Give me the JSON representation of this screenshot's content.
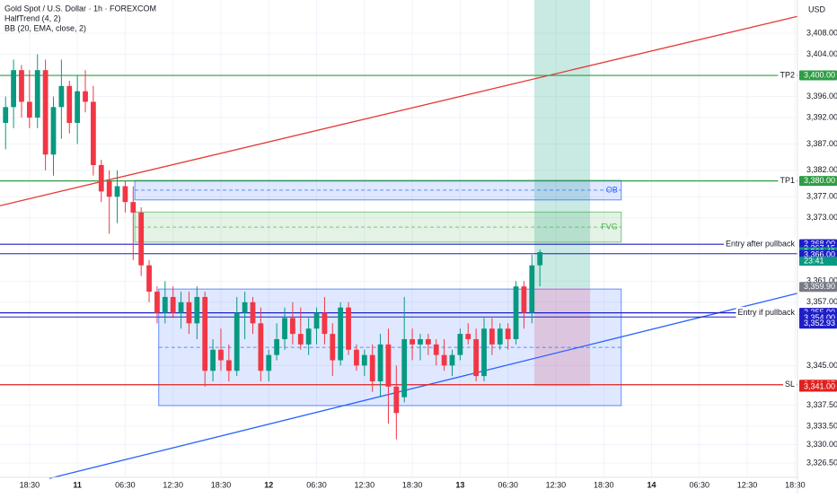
{
  "chart_data": {
    "type": "candlestick",
    "title": "Gold Spot / U.S. Dollar · 1h · FOREXCOM",
    "indicators": [
      "HalfTrend (4, 2)",
      "BB (20, EMA, close, 2)"
    ],
    "currency": "USD",
    "up_color": "#089981",
    "down_color": "#f23645",
    "x": [
      -3,
      -2,
      -1,
      0,
      1,
      2,
      3,
      4,
      5,
      6,
      7,
      8,
      9,
      10,
      11,
      12,
      13,
      14,
      15,
      16,
      17,
      18,
      19,
      20,
      21,
      22,
      23,
      24,
      25,
      26,
      27,
      28,
      29,
      30,
      31,
      32,
      33,
      34,
      35,
      36,
      37,
      38,
      39,
      40,
      41,
      42,
      43,
      44,
      45,
      46,
      47,
      48,
      49,
      50,
      51,
      52,
      53,
      54,
      55,
      56,
      57,
      58,
      59,
      60,
      61,
      62,
      63,
      64
    ],
    "open": [
      3391,
      3394,
      3401,
      3395,
      3392,
      3401,
      3385,
      3394,
      3398,
      3391,
      3397,
      3395,
      3383,
      3380,
      3377,
      3379,
      3376,
      3374,
      3364,
      3359,
      3355,
      3358,
      3355,
      3357,
      3353,
      3358,
      3344,
      3348,
      3346,
      3344,
      3355,
      3357,
      3353,
      3344,
      3347,
      3350,
      3354,
      3351,
      3349,
      3352,
      3355,
      3351,
      3346,
      3356,
      3348,
      3345,
      3347,
      3342,
      3349,
      3341,
      3339,
      3350,
      3349,
      3350,
      3349,
      3347,
      3345,
      3347,
      3351,
      3350,
      3343,
      3352,
      3349,
      3352,
      3350,
      3360,
      3355,
      3364
    ],
    "high": [
      3396,
      3403,
      3402,
      3401,
      3404,
      3403,
      3396,
      3403,
      3399,
      3400,
      3401,
      3398,
      3384,
      3382,
      3382,
      3380,
      3379,
      3375,
      3365,
      3360,
      3361,
      3360,
      3359,
      3359,
      3360,
      3359,
      3350,
      3352,
      3349,
      3358,
      3359,
      3358,
      3356,
      3348,
      3353,
      3356,
      3357,
      3356,
      3354,
      3356,
      3358,
      3353,
      3357,
      3357,
      3349,
      3348,
      3349,
      3351,
      3352,
      3345,
      3358,
      3352,
      3351,
      3351,
      3350,
      3350,
      3348,
      3352,
      3353,
      3352,
      3354,
      3354,
      3353,
      3353,
      3361,
      3361,
      3366,
      3367
    ],
    "low": [
      3386,
      3390,
      3392,
      3390,
      3390,
      3382,
      3381,
      3388,
      3389,
      3387,
      3393,
      3381,
      3376,
      3370,
      3372,
      3374,
      3365,
      3362,
      3357,
      3353,
      3353,
      3354,
      3352,
      3351,
      3350,
      3341,
      3342,
      3344,
      3342,
      3343,
      3350,
      3351,
      3342,
      3342,
      3346,
      3348,
      3349,
      3348,
      3347,
      3349,
      3349,
      3343,
      3345,
      3347,
      3344,
      3343,
      3340,
      3339,
      3334,
      3331,
      3338,
      3346,
      3346,
      3347,
      3345,
      3344,
      3343,
      3346,
      3349,
      3342,
      3342,
      3347,
      3348,
      3348,
      3349,
      3352,
      3353,
      3360
    ],
    "close": [
      3394,
      3401,
      3395,
      3392,
      3401,
      3385,
      3394,
      3398,
      3391,
      3397,
      3395,
      3383,
      3378,
      3377,
      3379,
      3376,
      3374,
      3364,
      3359,
      3355,
      3358,
      3355,
      3357,
      3353,
      3358,
      3344,
      3348,
      3346,
      3344,
      3355,
      3357,
      3353,
      3344,
      3347,
      3350,
      3354,
      3351,
      3349,
      3352,
      3355,
      3351,
      3346,
      3356,
      3348,
      3345,
      3347,
      3342,
      3349,
      3341,
      3336,
      3350,
      3349,
      3350,
      3349,
      3347,
      3345,
      3347,
      3351,
      3350,
      3343,
      3352,
      3349,
      3352,
      3350,
      3360,
      3355,
      3364,
      3366.5
    ],
    "xlim": [
      -3.7,
      96.3
    ],
    "xticks": [
      {
        "value": 0,
        "label": "18:30"
      },
      {
        "value": 6,
        "label": "11"
      },
      {
        "value": 12,
        "label": "06:30"
      },
      {
        "value": 18,
        "label": "12:30"
      },
      {
        "value": 24,
        "label": "18:30"
      },
      {
        "value": 30,
        "label": "12"
      },
      {
        "value": 36,
        "label": "06:30"
      },
      {
        "value": 42,
        "label": "12:30"
      },
      {
        "value": 48,
        "label": "18:30"
      },
      {
        "value": 54,
        "label": "13"
      },
      {
        "value": 60,
        "label": "06:30"
      },
      {
        "value": 66,
        "label": "12:30"
      },
      {
        "value": 72,
        "label": "18:30"
      },
      {
        "value": 78,
        "label": "14"
      },
      {
        "value": 84,
        "label": "06:30"
      },
      {
        "value": 90,
        "label": "12:30"
      },
      {
        "value": 96,
        "label": "18:30"
      }
    ],
    "ylim": [
      3323.8,
      3414.3
    ],
    "yticks": [
      {
        "value": 3408,
        "label": "3,408.00"
      },
      {
        "value": 3404,
        "label": "3,404.00"
      },
      {
        "value": 3396,
        "label": "3,396.00"
      },
      {
        "value": 3392,
        "label": "3,392.00"
      },
      {
        "value": 3387,
        "label": "3,387.00"
      },
      {
        "value": 3382,
        "label": "3,382.00"
      },
      {
        "value": 3377,
        "label": "3,377.00"
      },
      {
        "value": 3373,
        "label": "3,373.00"
      },
      {
        "value": 3361,
        "label": "3,361.00"
      },
      {
        "value": 3357,
        "label": "3,357.00"
      },
      {
        "value": 3345,
        "label": "3,345.00"
      },
      {
        "value": 3337.5,
        "label": "3,337.50"
      },
      {
        "value": 3333.5,
        "label": "3,333.50"
      },
      {
        "value": 3330,
        "label": "3,330.00"
      },
      {
        "value": 3326.5,
        "label": "3,326.50"
      }
    ],
    "grid": true,
    "levels": [
      {
        "name": "TP2",
        "value": 3400,
        "color": "#2e9d45"
      },
      {
        "name": "TP1",
        "value": 3380,
        "color": "#2e9d45"
      },
      {
        "name": "Entry after pullback",
        "value": 3368,
        "color": "#1e1ec8"
      },
      {
        "name": "Entry if pullback",
        "value": 3355,
        "color": "#1e1ec8"
      },
      {
        "name": "SL",
        "value": 3341.37,
        "color": "#e02020"
      }
    ],
    "extra_lines": [
      {
        "value": 3366.2,
        "color": "#1e1ec8"
      },
      {
        "value": 3354.2,
        "color": "#1e1ec8"
      }
    ],
    "boxes": [
      {
        "label": "OB",
        "x0": 13.2,
        "x1": 74.2,
        "top": 3380.1,
        "bottom": 3376.4,
        "color": "#2962ff"
      },
      {
        "label": "FVG",
        "x0": 13.2,
        "x1": 74.2,
        "top": 3374.1,
        "bottom": 3368.4,
        "color": "#4caf50"
      },
      {
        "x0": 16.2,
        "x1": 74.2,
        "top": 3359.5,
        "bottom": 3337.4,
        "color": "#2962ff"
      }
    ],
    "position": {
      "x0": 63.3,
      "x1": 70.3,
      "target": 3414.3,
      "entry": 3359.8,
      "stop": 3341.1
    },
    "trendlines": [
      {
        "x": [
          -3.7,
          96.3
        ],
        "y": [
          3375.3,
          3411.2
        ],
        "color": "#e53935"
      },
      {
        "x": [
          2.5,
          96.3
        ],
        "y": [
          3323.6,
          3358.7
        ],
        "color": "#2962ff"
      }
    ],
    "price_labels": [
      {
        "value": 3400,
        "label": "3,400.00",
        "color": "#2e9d45"
      },
      {
        "value": 3380,
        "label": "3,380.00",
        "color": "#2e9d45"
      },
      {
        "value": 3368,
        "label": "3,368.00",
        "color": "#1e1ec8"
      },
      {
        "value": 3367.15,
        "label": "3,367.15",
        "color": "#1e1ec8"
      },
      {
        "value": 3366.49,
        "label": "3,366.49",
        "color": "#089981"
      },
      {
        "value": 3366,
        "label": "3,366.00",
        "color": "#1e1ec8"
      },
      {
        "value": 3359.9,
        "label": "3,359.90",
        "color": "#787b86"
      },
      {
        "value": 3355,
        "label": "3,355.00",
        "color": "#1e1ec8"
      },
      {
        "value": 3354.26,
        "label": "3,354.26",
        "color": "#1e1ec8"
      },
      {
        "value": 3354,
        "label": "3,354.00",
        "color": "#1e1ec8"
      },
      {
        "value": 3352.93,
        "label": "3,352.93",
        "color": "#1e1ec8"
      },
      {
        "value": 3341.37,
        "label": "3,341.37",
        "color": "#e02020"
      },
      {
        "value": 3341,
        "label": "3,341.00",
        "color": "#e02020"
      },
      {
        "value": 3340.99,
        "label": "3,341.00",
        "color": "#e02020"
      }
    ],
    "countdown": "23:41"
  }
}
